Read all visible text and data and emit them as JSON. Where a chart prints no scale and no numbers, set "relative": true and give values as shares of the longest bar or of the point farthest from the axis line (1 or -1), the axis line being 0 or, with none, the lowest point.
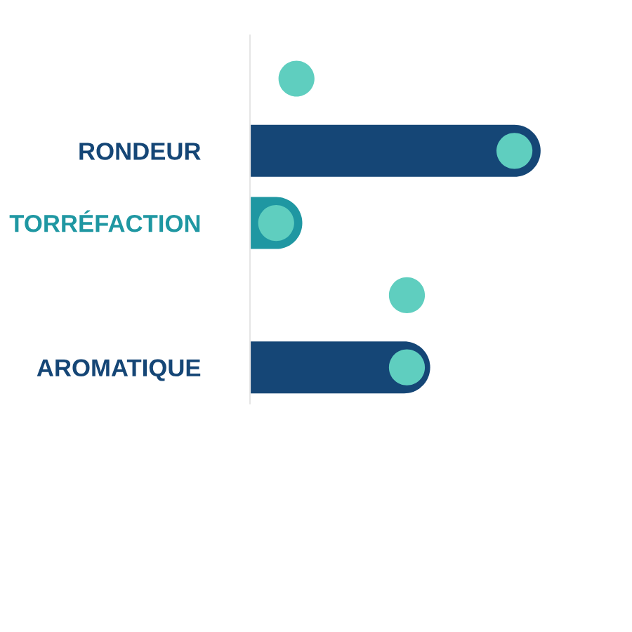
{
  "chart_data": {
    "type": "bar",
    "orientation": "horizontal",
    "relative": true,
    "tick_labels": "y",
    "categories": [
      null,
      "RONDEUR",
      "TORRÉFACTION",
      null,
      "AROMATIQUE"
    ],
    "series": [
      {
        "colors": [
          null,
          "#154676",
          "#1f97a2",
          null,
          "#154676"
        ],
        "values": [
          null,
          1,
          0.18,
          null,
          0.62
        ]
      },
      {
        "type": "scatter",
        "color": "#5fcebf",
        "marker": "circle",
        "values": [
          0.16,
          0.91,
          0.09,
          0.54,
          0.54
        ]
      }
    ]
  }
}
